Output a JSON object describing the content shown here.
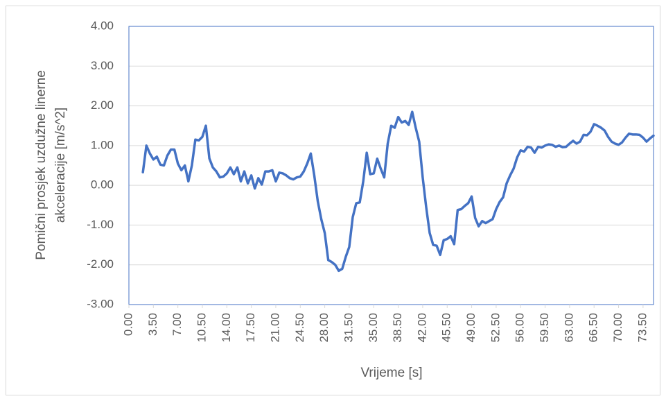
{
  "chart_data": {
    "type": "line",
    "ylabel": [
      "Pomični prosjek uzdužne linerne",
      "akceleracije  [m/s^2]"
    ],
    "xlabel": "Vrijeme [s]",
    "color": "#4472c4",
    "grid": true,
    "xlim": [
      0,
      75
    ],
    "ylim": [
      -3,
      4
    ],
    "yticks": [
      {
        "value": -3,
        "label": "-3.00"
      },
      {
        "value": -2,
        "label": "-2.00"
      },
      {
        "value": -1,
        "label": "-1.00"
      },
      {
        "value": 0,
        "label": "0.00"
      },
      {
        "value": 1,
        "label": "1.00"
      },
      {
        "value": 2,
        "label": "2.00"
      },
      {
        "value": 3,
        "label": "3.00"
      },
      {
        "value": 4,
        "label": "4.00"
      }
    ],
    "xticks": [
      {
        "value": 0,
        "label": "0.00"
      },
      {
        "value": 3.5,
        "label": "3.50"
      },
      {
        "value": 7,
        "label": "7.00"
      },
      {
        "value": 10.5,
        "label": "10.50"
      },
      {
        "value": 14,
        "label": "14.00"
      },
      {
        "value": 17.5,
        "label": "17.50"
      },
      {
        "value": 21,
        "label": "21.00"
      },
      {
        "value": 24.5,
        "label": "24.50"
      },
      {
        "value": 28,
        "label": "28.00"
      },
      {
        "value": 31.5,
        "label": "31.50"
      },
      {
        "value": 35,
        "label": "35.00"
      },
      {
        "value": 38.5,
        "label": "38.50"
      },
      {
        "value": 42,
        "label": "42.00"
      },
      {
        "value": 45.5,
        "label": "45.50"
      },
      {
        "value": 49,
        "label": "49.00"
      },
      {
        "value": 52.5,
        "label": "52.50"
      },
      {
        "value": 56,
        "label": "56.00"
      },
      {
        "value": 59.5,
        "label": "59.50"
      },
      {
        "value": 63,
        "label": "63.00"
      },
      {
        "value": 66.5,
        "label": "66.50"
      },
      {
        "value": 70,
        "label": "70.00"
      },
      {
        "value": 73.5,
        "label": "73.50"
      }
    ],
    "x": [
      2,
      2.5,
      3,
      3.5,
      4,
      4.5,
      5,
      5.5,
      6,
      6.5,
      7,
      7.5,
      8,
      8.5,
      9,
      9.5,
      10,
      10.5,
      11,
      11.5,
      12,
      12.5,
      13,
      13.5,
      14,
      14.5,
      15,
      15.5,
      16,
      16.5,
      17,
      17.5,
      18,
      18.5,
      19,
      19.5,
      20,
      20.5,
      21,
      21.5,
      22,
      22.5,
      23,
      23.5,
      24,
      24.5,
      25,
      25.5,
      26,
      26.5,
      27,
      27.5,
      28,
      28.5,
      29,
      29.5,
      30,
      30.5,
      31,
      31.5,
      32,
      32.5,
      33,
      33.5,
      34,
      34.5,
      35,
      35.5,
      36,
      36.5,
      37,
      37.5,
      38,
      38.5,
      39,
      39.5,
      40,
      40.5,
      41,
      41.5,
      42,
      42.5,
      43,
      43.5,
      44,
      44.5,
      45,
      45.5,
      46,
      46.5,
      47,
      47.5,
      48,
      48.5,
      49,
      49.5,
      50,
      50.5,
      51,
      51.5,
      52,
      52.5,
      53,
      53.5,
      54,
      54.5,
      55,
      55.5,
      56,
      56.5,
      57,
      57.5,
      58,
      58.5,
      59,
      59.5,
      60,
      60.5,
      61,
      61.5,
      62,
      62.5,
      63,
      63.5,
      64,
      64.5,
      65,
      65.5,
      66,
      66.5,
      67,
      67.5,
      68,
      68.5,
      69,
      69.5,
      70,
      70.5,
      71,
      71.5,
      72,
      72.5,
      73,
      73.5,
      74,
      74.5,
      75
    ],
    "values": [
      0.33,
      1.0,
      0.8,
      0.65,
      0.72,
      0.52,
      0.5,
      0.75,
      0.9,
      0.9,
      0.55,
      0.38,
      0.5,
      0.1,
      0.5,
      1.15,
      1.13,
      1.22,
      1.5,
      0.68,
      0.45,
      0.35,
      0.2,
      0.22,
      0.3,
      0.45,
      0.28,
      0.45,
      0.1,
      0.35,
      0.05,
      0.25,
      -0.08,
      0.18,
      0.02,
      0.35,
      0.35,
      0.38,
      0.1,
      0.32,
      0.3,
      0.25,
      0.18,
      0.15,
      0.2,
      0.22,
      0.35,
      0.55,
      0.8,
      0.25,
      -0.4,
      -0.85,
      -1.2,
      -1.88,
      -1.93,
      -2.0,
      -2.15,
      -2.1,
      -1.8,
      -1.55,
      -0.8,
      -0.45,
      -0.43,
      0.1,
      0.82,
      0.28,
      0.3,
      0.67,
      0.42,
      0.2,
      1.05,
      1.5,
      1.45,
      1.72,
      1.58,
      1.62,
      1.52,
      1.85,
      1.45,
      1.1,
      0.2,
      -0.55,
      -1.2,
      -1.5,
      -1.52,
      -1.75,
      -1.38,
      -1.35,
      -1.28,
      -1.48,
      -0.62,
      -0.6,
      -0.52,
      -0.45,
      -0.28,
      -0.82,
      -1.03,
      -0.9,
      -0.95,
      -0.9,
      -0.85,
      -0.6,
      -0.42,
      -0.3,
      0.05,
      0.25,
      0.42,
      0.7,
      0.88,
      0.85,
      0.97,
      0.95,
      0.82,
      0.97,
      0.95,
      1.0,
      1.03,
      1.02,
      0.97,
      1.0,
      0.96,
      0.97,
      1.05,
      1.12,
      1.05,
      1.1,
      1.27,
      1.26,
      1.35,
      1.54,
      1.5,
      1.45,
      1.38,
      1.22,
      1.1,
      1.05,
      1.02,
      1.08,
      1.2,
      1.3,
      1.28,
      1.28,
      1.27,
      1.2,
      1.1,
      1.18,
      1.25
    ]
  }
}
